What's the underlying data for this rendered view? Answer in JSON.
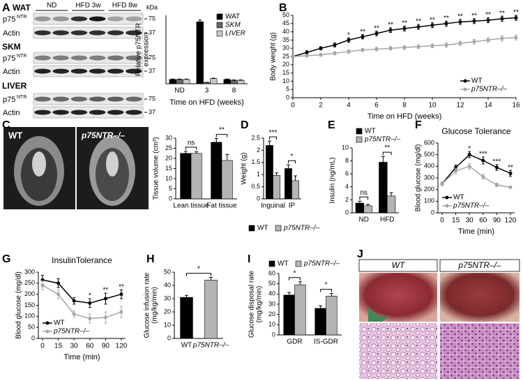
{
  "panels": [
    "A",
    "B",
    "C",
    "D",
    "E",
    "F",
    "G",
    "H",
    "I",
    "J"
  ],
  "blot": {
    "unit": "kDa",
    "groups": [
      "ND",
      "HFD 3w",
      "HFD 8w"
    ],
    "tissues": [
      "WAT",
      "SKM",
      "LIVER"
    ],
    "rows": [
      {
        "base": "p75",
        "sup": "NTR"
      },
      {
        "base": "Actin"
      }
    ],
    "markers": [
      "75",
      "37"
    ]
  },
  "images": {
    "mri": [
      "WT",
      "p75NTR–/–"
    ],
    "liver": [
      "WT",
      "p75NTR–/–"
    ]
  },
  "chart_data": [
    {
      "type": "bar",
      "ylabel": [
        "Relative p75NTR",
        "expression"
      ],
      "xlabel": "Time on HFD (weeks)",
      "categories": [
        "ND",
        "3",
        "8"
      ],
      "ylim": [
        0,
        16
      ],
      "legend": "upper right",
      "series": [
        {
          "name": "WAT",
          "color": "#000000",
          "values": [
            1,
            14.5,
            1
          ],
          "errors": [
            0.1,
            0.4,
            0.1
          ]
        },
        {
          "name": "SKM",
          "color": "#666666",
          "values": [
            1,
            0.3,
            0.8
          ],
          "errors": [
            0.1,
            0.05,
            0.1
          ]
        },
        {
          "name": "LIVER",
          "color": "#c8c8c8",
          "values": [
            1,
            1.2,
            0.8
          ],
          "errors": [
            0.1,
            0.1,
            0.1
          ]
        }
      ]
    },
    {
      "type": "line",
      "ylabel": "Body weight (g)",
      "xlabel": "Time on HFD (weeks)",
      "x": [
        0,
        1,
        2,
        3,
        4,
        5,
        6,
        7,
        8,
        9,
        10,
        11,
        12,
        13,
        14,
        15,
        16
      ],
      "xlim": [
        0,
        16
      ],
      "xticks": [
        0,
        2,
        4,
        6,
        8,
        10,
        12,
        14,
        16
      ],
      "ylim": [
        0,
        50
      ],
      "yticks": [
        0,
        5,
        10,
        15,
        20,
        25,
        30,
        35,
        40,
        45,
        50
      ],
      "legend": "lower right",
      "annotations": [
        "*",
        "**",
        "**",
        "**",
        "**",
        "**",
        "**",
        "**",
        "**",
        "**",
        "**",
        "**",
        "**"
      ],
      "series": [
        {
          "name": "WT",
          "color": "#000000",
          "values": [
            25,
            27.5,
            30,
            32,
            35,
            37,
            39,
            41,
            42,
            43,
            44,
            45,
            46,
            46.5,
            47,
            48,
            48.5
          ],
          "errors": [
            0.8,
            1,
            1,
            1.2,
            1.3,
            1.3,
            1.4,
            1.4,
            1.5,
            1.5,
            1.5,
            1.5,
            1.5,
            1.5,
            1.5,
            1.5,
            1.5
          ]
        },
        {
          "name": "p75NTR–/–",
          "color": "#a6a6a6",
          "values": [
            25,
            25.5,
            26,
            27,
            28,
            29,
            29.5,
            30,
            30.5,
            31,
            31.5,
            32,
            33,
            34,
            35,
            36,
            36.5
          ],
          "errors": [
            0.8,
            0.8,
            0.9,
            1,
            1,
            1,
            1.1,
            1.1,
            1.2,
            1.2,
            1.2,
            1.3,
            1.3,
            1.4,
            1.4,
            1.5,
            1.5
          ]
        }
      ]
    },
    {
      "type": "bar",
      "ylabel": "Tissue volume (cm³)",
      "categories": [
        "Lean tissue",
        "Fat tissue"
      ],
      "ylim": [
        0,
        30
      ],
      "yticks": [
        0,
        5,
        10,
        15,
        20,
        25,
        30
      ],
      "annotations": [
        "ns",
        "**"
      ],
      "series": [
        {
          "color": "#000000",
          "values": [
            22.5,
            28
          ],
          "errors": [
            1,
            1.8
          ]
        },
        {
          "color": "#b4b4b4",
          "values": [
            22.5,
            19
          ],
          "errors": [
            0.8,
            3
          ]
        }
      ]
    },
    {
      "type": "bar",
      "ylabel": "Weight (g)",
      "categories": [
        "Inguinal",
        "IP"
      ],
      "ylim": [
        0,
        2.5
      ],
      "yticks": [
        0,
        0.5,
        1,
        1.5,
        2,
        2.5
      ],
      "annotations": [
        "***",
        "*"
      ],
      "legend": "below",
      "series": [
        {
          "name": "WT",
          "color": "#000000",
          "values": [
            2.2,
            1.25
          ],
          "errors": [
            0.18,
            0.15
          ]
        },
        {
          "name": "p75NTR–/–",
          "color": "#b4b4b4",
          "values": [
            0.97,
            0.75
          ],
          "errors": [
            0.1,
            0.2
          ]
        }
      ]
    },
    {
      "type": "bar",
      "ylabel": "Insulin (ng/mL)",
      "categories": [
        "ND",
        "HFD"
      ],
      "ylim": [
        0,
        10
      ],
      "yticks": [
        0,
        2,
        4,
        6,
        8,
        10
      ],
      "annotations": [
        "ns",
        "**"
      ],
      "legend": "upper left",
      "series": [
        {
          "name": "WT",
          "color": "#000000",
          "values": [
            1.5,
            7.8
          ],
          "errors": [
            0.3,
            0.9
          ]
        },
        {
          "name": "p75NTR–/–",
          "color": "#b4b4b4",
          "values": [
            1.1,
            2.6
          ],
          "errors": [
            0.2,
            0.5
          ]
        }
      ]
    },
    {
      "type": "line",
      "title": "Glucose Tolerance",
      "ylabel": "Blood glucose (mg/dl)",
      "xlabel": "Time (min)",
      "categories": [
        "0",
        "15",
        "30",
        "60",
        "90",
        "120"
      ],
      "ylim": [
        0,
        600
      ],
      "yticks": [
        0,
        100,
        200,
        300,
        400,
        500,
        600
      ],
      "annotations": [
        "*",
        "***",
        "***",
        "**"
      ],
      "legend": "lower left",
      "series": [
        {
          "name": "WT",
          "color": "#000000",
          "values": [
            250,
            390,
            500,
            450,
            390,
            340
          ],
          "errors": [
            15,
            20,
            25,
            30,
            25,
            25
          ]
        },
        {
          "name": "p75NTR–/–",
          "color": "#a6a6a6",
          "values": [
            250,
            360,
            400,
            310,
            240,
            220
          ],
          "errors": [
            15,
            25,
            25,
            20,
            15,
            10
          ]
        }
      ]
    },
    {
      "type": "line",
      "title": "InsulinTolerance",
      "ylabel": "Blood glucose (mg/dl)",
      "xlabel": "Time (min)",
      "categories": [
        "0",
        "15",
        "30",
        "60",
        "90",
        "120"
      ],
      "ylim": [
        0,
        300
      ],
      "yticks": [
        0,
        50,
        100,
        150,
        200,
        250,
        300
      ],
      "annotations": [
        "*",
        "**",
        "**"
      ],
      "legend": "lower left",
      "series": [
        {
          "name": "WT",
          "color": "#000000",
          "values": [
            265,
            250,
            170,
            160,
            180,
            200
          ],
          "errors": [
            20,
            20,
            15,
            20,
            25,
            20
          ]
        },
        {
          "name": "p75NTR–/–",
          "color": "#a6a6a6",
          "values": [
            240,
            200,
            110,
            90,
            95,
            120
          ],
          "errors": [
            20,
            20,
            15,
            20,
            25,
            25
          ]
        }
      ]
    },
    {
      "type": "bar",
      "ylabel": [
        "Glucose infusion rate",
        "(mg/kg/min)"
      ],
      "categories": [
        "WT",
        "p75NTR–/–"
      ],
      "values": [
        31,
        44
      ],
      "errors": [
        1.5,
        2
      ],
      "colors": [
        "#000000",
        "#b4b4b4"
      ],
      "ylim": [
        0,
        50
      ],
      "yticks": [
        0,
        10,
        20,
        30,
        40,
        50
      ],
      "annotations": [
        "*"
      ]
    },
    {
      "type": "bar",
      "ylabel": [
        "Glucose disposal rate",
        "(mg/kg/min)"
      ],
      "categories": [
        "GDR",
        "IS-GDR"
      ],
      "ylim": [
        0,
        60
      ],
      "yticks": [
        0,
        10,
        20,
        30,
        40,
        50,
        60
      ],
      "annotations": [
        "*",
        "*"
      ],
      "legend": "top",
      "series": [
        {
          "name": "WT",
          "color": "#000000",
          "values": [
            39,
            26
          ],
          "errors": [
            2.5,
            2.5
          ]
        },
        {
          "name": "p75NTR–/–",
          "color": "#b4b4b4",
          "values": [
            49,
            38
          ],
          "errors": [
            3,
            2.5
          ]
        }
      ]
    }
  ]
}
